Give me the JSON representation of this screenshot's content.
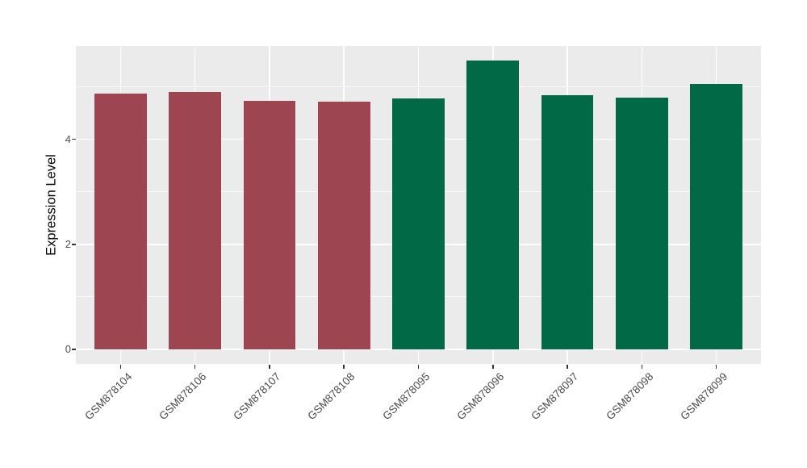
{
  "figure": {
    "background": "#FFFFFF"
  },
  "chart_data": {
    "type": "bar",
    "title": "",
    "xlabel": "",
    "ylabel": "Expression Level",
    "categories": [
      "GSM878104",
      "GSM878106",
      "GSM878107",
      "GSM878108",
      "GSM878095",
      "GSM878096",
      "GSM878097",
      "GSM878098",
      "GSM878099"
    ],
    "values": [
      4.87,
      4.9,
      4.73,
      4.72,
      4.77,
      5.5,
      4.84,
      4.79,
      5.06
    ],
    "bar_colors": [
      "#9E4552",
      "#9E4552",
      "#9E4552",
      "#9E4552",
      "#016946",
      "#016946",
      "#016946",
      "#016946",
      "#016946"
    ],
    "color_groups": [
      {
        "color": "#9E4552",
        "categories": [
          "GSM878104",
          "GSM878106",
          "GSM878107",
          "GSM878108"
        ]
      },
      {
        "color": "#016946",
        "categories": [
          "GSM878095",
          "GSM878096",
          "GSM878097",
          "GSM878098",
          "GSM878099"
        ]
      }
    ],
    "ylim": [
      -0.275,
      5.775
    ],
    "yticks_major": [
      0,
      2,
      4
    ],
    "yticks_minor": [
      1,
      3,
      5
    ],
    "x_tick_rotation_deg": 45,
    "grid": true,
    "legend": false,
    "style": {
      "panel_bg": "#EBEBEB",
      "grid_color": "#FFFFFF",
      "tick_mark_color": "#333333",
      "tick_label_color": "#4D4D4D",
      "axis_title_color": "#000000"
    }
  }
}
